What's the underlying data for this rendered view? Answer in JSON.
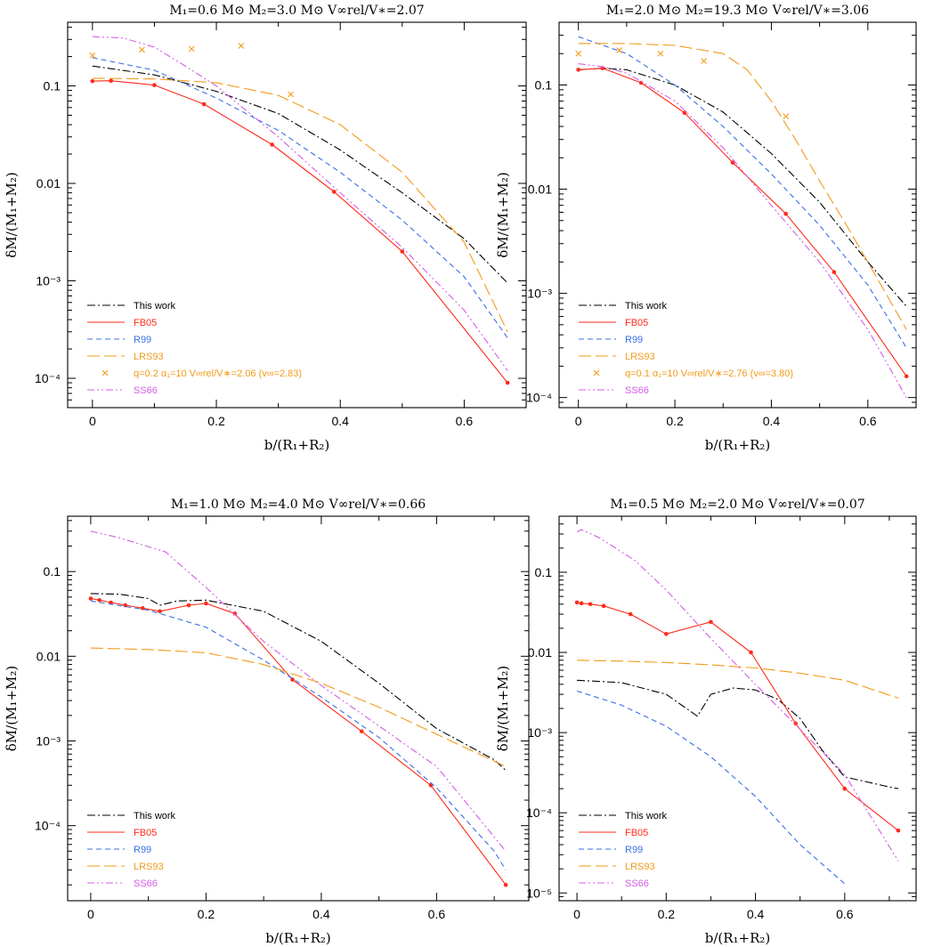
{
  "colors": {
    "This work": "#000000",
    "FB05": "#ff2a1a",
    "R99": "#3a6fe6",
    "LRS93": "#f29a1a",
    "SS66": "#d45ce6"
  },
  "chart_data": [
    {
      "type": "line",
      "title": "M₁=0.6 M⊙ M₂=3.0 M⊙   V∞rel/V∗=2.07",
      "xlabel": "b/(R₁+R₂)",
      "ylabel": "δM/(M₁+M₂)",
      "xlim": [
        -0.04,
        0.7
      ],
      "ylim": [
        5e-05,
        0.45
      ],
      "yscale": "log",
      "grid": false,
      "legend": "bottom-left",
      "x_ticks": [
        "0",
        "0.2",
        "0.4",
        "0.6"
      ],
      "y_ticks": [
        "10⁻⁴",
        "10⁻³",
        "0.01",
        "0.1"
      ],
      "series": [
        {
          "name": "This work",
          "style": "dashdot",
          "x": [
            0,
            0.1,
            0.2,
            0.3,
            0.4,
            0.5,
            0.6,
            0.67
          ],
          "y": [
            0.16,
            0.13,
            0.088,
            0.052,
            0.022,
            0.008,
            0.0027,
            0.00095
          ]
        },
        {
          "name": "FB05",
          "style": "solid",
          "markers": true,
          "x": [
            0,
            0.03,
            0.1,
            0.18,
            0.29,
            0.39,
            0.5,
            0.67
          ],
          "y": [
            0.112,
            0.113,
            0.102,
            0.065,
            0.025,
            0.0082,
            0.002,
            9e-05
          ]
        },
        {
          "name": "R99",
          "style": "dashed",
          "x": [
            0,
            0.1,
            0.2,
            0.3,
            0.4,
            0.5,
            0.6,
            0.67
          ],
          "y": [
            0.195,
            0.145,
            0.075,
            0.035,
            0.013,
            0.0042,
            0.0011,
            0.00026
          ]
        },
        {
          "name": "LRS93",
          "style": "longdash",
          "x": [
            0,
            0.1,
            0.2,
            0.3,
            0.4,
            0.5,
            0.6,
            0.67
          ],
          "y": [
            0.12,
            0.118,
            0.108,
            0.08,
            0.04,
            0.013,
            0.0025,
            0.0003
          ]
        },
        {
          "name": "q=0.2  α₁=10  V∞rel/V∗=2.06  (v∞=2.83)",
          "style": "cross",
          "x": [
            0,
            0.08,
            0.16,
            0.24,
            0.32
          ],
          "y": [
            0.205,
            0.235,
            0.24,
            0.258,
            0.082
          ]
        },
        {
          "name": "SS66",
          "style": "dashdotdot",
          "x": [
            0,
            0.05,
            0.1,
            0.15,
            0.2,
            0.3,
            0.4,
            0.5,
            0.6,
            0.67
          ],
          "y": [
            0.32,
            0.31,
            0.25,
            0.16,
            0.1,
            0.03,
            0.008,
            0.0022,
            0.0005,
            0.00012
          ]
        }
      ]
    },
    {
      "type": "line",
      "title": "M₁=2.0 M⊙ M₂=19.3 M⊙   V∞rel/V∗=3.06",
      "xlabel": "b/(R₁+R₂)",
      "ylabel": "δM/(M₁+M₂)",
      "xlim": [
        -0.04,
        0.7
      ],
      "ylim": [
        8e-05,
        0.4
      ],
      "yscale": "log",
      "grid": false,
      "legend": "bottom-left",
      "x_ticks": [
        "0",
        "0.2",
        "0.4",
        "0.6"
      ],
      "y_ticks": [
        "10⁻⁴",
        "10⁻³",
        "0.01",
        "0.1"
      ],
      "series": [
        {
          "name": "This work",
          "style": "dashdot",
          "x": [
            0,
            0.05,
            0.1,
            0.2,
            0.3,
            0.4,
            0.5,
            0.6,
            0.68
          ],
          "y": [
            0.14,
            0.145,
            0.14,
            0.1,
            0.055,
            0.022,
            0.0075,
            0.002,
            0.00075
          ]
        },
        {
          "name": "FB05",
          "style": "solid",
          "markers": true,
          "x": [
            0,
            0.05,
            0.13,
            0.22,
            0.32,
            0.43,
            0.53,
            0.68
          ],
          "y": [
            0.14,
            0.145,
            0.105,
            0.054,
            0.018,
            0.0058,
            0.0016,
            0.00016
          ]
        },
        {
          "name": "R99",
          "style": "dashed",
          "x": [
            0,
            0.1,
            0.2,
            0.3,
            0.4,
            0.5,
            0.6,
            0.68
          ],
          "y": [
            0.29,
            0.2,
            0.1,
            0.04,
            0.014,
            0.0045,
            0.0012,
            0.0003
          ]
        },
        {
          "name": "LRS93",
          "style": "longdash",
          "x": [
            0,
            0.1,
            0.2,
            0.3,
            0.35,
            0.4,
            0.45,
            0.5,
            0.55,
            0.6,
            0.68
          ],
          "y": [
            0.25,
            0.25,
            0.24,
            0.2,
            0.14,
            0.07,
            0.03,
            0.012,
            0.005,
            0.002,
            0.00045
          ]
        },
        {
          "name": "q=0.1  α₁=10  V∞rel/V∗=2.76  (v∞=3.80)",
          "style": "cross",
          "x": [
            0,
            0.085,
            0.17,
            0.26,
            0.43
          ],
          "y": [
            0.2,
            0.215,
            0.2,
            0.17,
            0.05
          ]
        },
        {
          "name": "SS66",
          "style": "dashdotdot",
          "x": [
            0,
            0.05,
            0.1,
            0.2,
            0.3,
            0.4,
            0.5,
            0.6,
            0.68
          ],
          "y": [
            0.16,
            0.15,
            0.13,
            0.07,
            0.025,
            0.007,
            0.002,
            0.00045,
            0.0001
          ]
        }
      ]
    },
    {
      "type": "line",
      "title": "M₁=1.0 M⊙ M₂=4.0 M⊙   V∞rel/V∗=0.66",
      "xlabel": "b/(R₁+R₂)",
      "ylabel": "δM/(M₁+M₂)",
      "xlim": [
        -0.04,
        0.76
      ],
      "ylim": [
        1.3e-05,
        0.45
      ],
      "yscale": "log",
      "grid": false,
      "legend": "bottom-left",
      "x_ticks": [
        "0",
        "0.2",
        "0.4",
        "0.6"
      ],
      "y_ticks": [
        "10⁻⁴",
        "10⁻³",
        "0.01",
        "0.1"
      ],
      "series": [
        {
          "name": "This work",
          "style": "dashdot",
          "x": [
            0,
            0.05,
            0.1,
            0.12,
            0.15,
            0.2,
            0.3,
            0.4,
            0.5,
            0.6,
            0.7,
            0.72
          ],
          "y": [
            0.055,
            0.054,
            0.048,
            0.04,
            0.045,
            0.046,
            0.034,
            0.015,
            0.0048,
            0.0014,
            0.0006,
            0.00045
          ]
        },
        {
          "name": "FB05",
          "style": "solid",
          "markers": true,
          "x": [
            0,
            0.015,
            0.035,
            0.06,
            0.09,
            0.12,
            0.17,
            0.2,
            0.25,
            0.35,
            0.47,
            0.59,
            0.72
          ],
          "y": [
            0.048,
            0.046,
            0.043,
            0.04,
            0.037,
            0.034,
            0.04,
            0.042,
            0.032,
            0.0053,
            0.0013,
            0.0003,
            2e-05
          ]
        },
        {
          "name": "R99",
          "style": "dashed",
          "x": [
            0,
            0.1,
            0.2,
            0.3,
            0.4,
            0.5,
            0.6,
            0.7,
            0.72
          ],
          "y": [
            0.045,
            0.035,
            0.022,
            0.009,
            0.0033,
            0.0011,
            0.00028,
            5e-05,
            3e-05
          ]
        },
        {
          "name": "LRS93",
          "style": "longdash",
          "x": [
            0,
            0.1,
            0.2,
            0.3,
            0.4,
            0.5,
            0.6,
            0.72
          ],
          "y": [
            0.0125,
            0.012,
            0.011,
            0.008,
            0.0048,
            0.0025,
            0.0012,
            0.0005
          ]
        },
        {
          "name": "SS66",
          "style": "dashdotdot",
          "x": [
            0,
            0.05,
            0.13,
            0.2,
            0.3,
            0.4,
            0.5,
            0.6,
            0.72
          ],
          "y": [
            0.3,
            0.25,
            0.17,
            0.065,
            0.015,
            0.0045,
            0.0015,
            0.0005,
            5e-05
          ]
        }
      ]
    },
    {
      "type": "line",
      "title": "M₁=0.5 M⊙ M₂=2.0 M⊙   V∞rel/V∗=0.07",
      "xlabel": "b/(R₁+R₂)",
      "ylabel": "δM/(M₁+M₂)",
      "xlim": [
        -0.04,
        0.76
      ],
      "ylim": [
        8e-06,
        0.5
      ],
      "yscale": "log",
      "grid": false,
      "legend": "bottom-left",
      "x_ticks": [
        "0",
        "0.2",
        "0.4",
        "0.6"
      ],
      "y_ticks": [
        "10⁻⁵",
        "10⁻⁴",
        "10⁻³",
        "0.01",
        "0.1"
      ],
      "series": [
        {
          "name": "This work",
          "style": "dashdot",
          "x": [
            0,
            0.1,
            0.2,
            0.27,
            0.3,
            0.35,
            0.4,
            0.45,
            0.5,
            0.55,
            0.6,
            0.7,
            0.72
          ],
          "y": [
            0.0045,
            0.0042,
            0.003,
            0.0016,
            0.003,
            0.0036,
            0.0034,
            0.0026,
            0.0015,
            0.0006,
            0.00028,
            0.00021,
            0.0002
          ]
        },
        {
          "name": "FB05",
          "style": "solid",
          "markers": true,
          "x": [
            0,
            0.01,
            0.03,
            0.06,
            0.12,
            0.2,
            0.3,
            0.39,
            0.49,
            0.6,
            0.72
          ],
          "y": [
            0.042,
            0.041,
            0.04,
            0.038,
            0.03,
            0.017,
            0.024,
            0.01,
            0.0013,
            0.0002,
            6e-05
          ]
        },
        {
          "name": "R99",
          "style": "dashed",
          "x": [
            0,
            0.1,
            0.2,
            0.3,
            0.4,
            0.5,
            0.6
          ],
          "y": [
            0.0033,
            0.0022,
            0.0012,
            0.0005,
            0.00016,
            4e-05,
            1.3e-05
          ]
        },
        {
          "name": "LRS93",
          "style": "longdash",
          "x": [
            0,
            0.1,
            0.2,
            0.3,
            0.4,
            0.5,
            0.6,
            0.72
          ],
          "y": [
            0.008,
            0.0078,
            0.0075,
            0.007,
            0.0064,
            0.0055,
            0.0045,
            0.0027
          ]
        },
        {
          "name": "SS66",
          "style": "dashdotdot",
          "x": [
            0,
            0.01,
            0.05,
            0.13,
            0.2,
            0.3,
            0.4,
            0.5,
            0.6,
            0.72
          ],
          "y": [
            0.32,
            0.34,
            0.27,
            0.14,
            0.06,
            0.015,
            0.004,
            0.0011,
            0.0003,
            2.5e-05
          ]
        }
      ]
    }
  ]
}
